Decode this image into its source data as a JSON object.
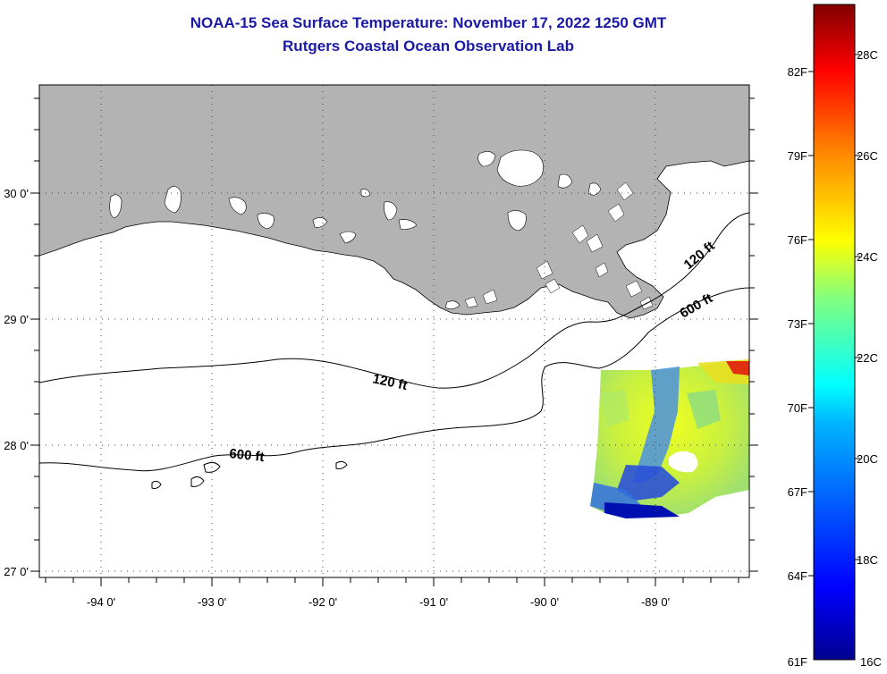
{
  "header": {
    "title": "NOAA-15 Sea Surface Temperature:  November 17, 2022 1250 GMT",
    "subtitle": "Rutgers Coastal Ocean Observation Lab"
  },
  "map": {
    "lon_ticks": [
      {
        "lon": -94,
        "label": "-94 0'"
      },
      {
        "lon": -93,
        "label": "-93 0'"
      },
      {
        "lon": -92,
        "label": "-92 0'"
      },
      {
        "lon": -91,
        "label": "-91 0'"
      },
      {
        "lon": -90,
        "label": "-90 0'"
      },
      {
        "lon": -89,
        "label": "-89 0'"
      }
    ],
    "lat_ticks": [
      {
        "lat": 30,
        "label": "30 0'"
      },
      {
        "lat": 29,
        "label": "29 0'"
      },
      {
        "lat": 28,
        "label": "28 0'"
      },
      {
        "lat": 27,
        "label": "27 0'"
      }
    ],
    "contour_labels": [
      {
        "id": "contour-label-120-west",
        "text": "120 ft"
      },
      {
        "id": "contour-label-600-west",
        "text": "600 ft"
      },
      {
        "id": "contour-label-120-east",
        "text": "120 ft"
      },
      {
        "id": "contour-label-600-east",
        "text": "600 ft"
      }
    ],
    "colors": {
      "land": "#b3b3b3",
      "water": "#ffffff",
      "grid": "#555555"
    }
  },
  "colorbar": {
    "fahrenheit_labels": [
      "82F",
      "79F",
      "76F",
      "73F",
      "70F",
      "67F",
      "64F",
      "61F"
    ],
    "celsius_labels": [
      "28C",
      "26C",
      "24C",
      "22C",
      "20C",
      "18C",
      "16C"
    ],
    "min_c": 16,
    "max_c": 29,
    "colors": [
      "#00008f",
      "#0000ff",
      "#0080ff",
      "#00ffff",
      "#80ff80",
      "#ffff00",
      "#ff8000",
      "#ff0000",
      "#800000"
    ]
  }
}
